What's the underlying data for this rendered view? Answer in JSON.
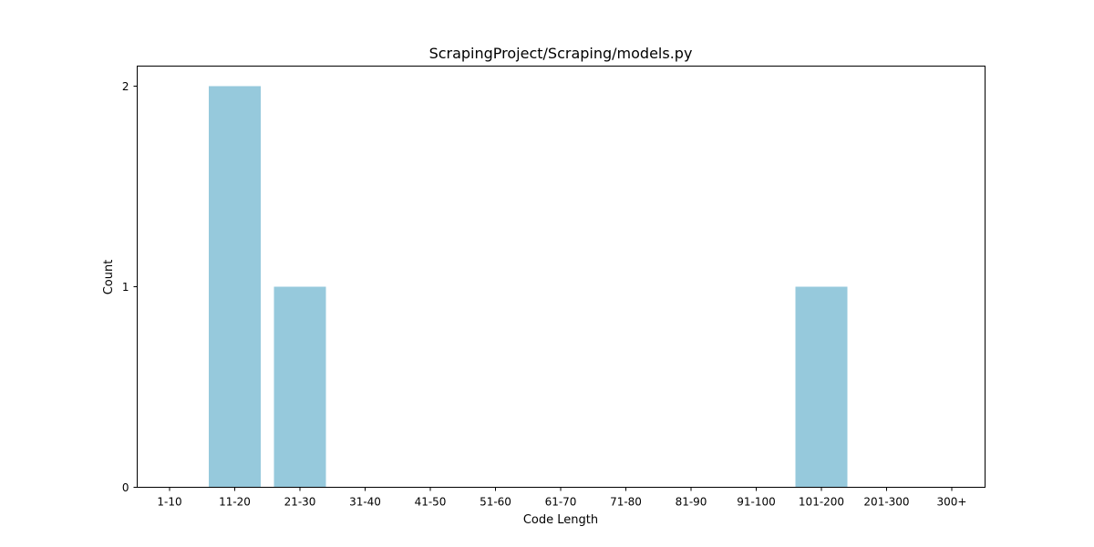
{
  "chart_data": {
    "type": "bar",
    "title": "ScrapingProject/Scraping/models.py",
    "xlabel": "Code Length",
    "ylabel": "Count",
    "categories": [
      "1-10",
      "11-20",
      "21-30",
      "31-40",
      "41-50",
      "51-60",
      "61-70",
      "71-80",
      "81-90",
      "91-100",
      "101-200",
      "201-300",
      "300+"
    ],
    "values": [
      0,
      2,
      1,
      0,
      0,
      0,
      0,
      0,
      0,
      0,
      1,
      0,
      0
    ],
    "ylim": [
      0,
      2.1
    ],
    "yticks": [
      0,
      1,
      2
    ],
    "grid": false,
    "bar_color": "#96c9dc"
  }
}
